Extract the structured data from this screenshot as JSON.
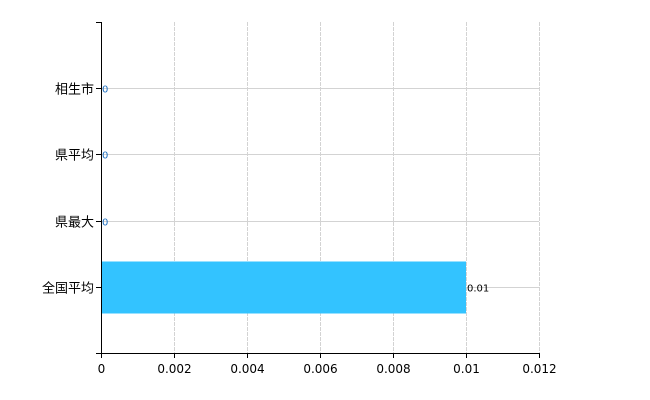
{
  "chart_data": {
    "type": "bar",
    "orientation": "horizontal",
    "title": "",
    "xlabel": "",
    "ylabel": "",
    "categories": [
      "相生市",
      "県平均",
      "県最大",
      "全国平均"
    ],
    "values": [
      0,
      0,
      0,
      0.01
    ],
    "data_labels": [
      "0",
      "0",
      "0",
      "0.01"
    ],
    "xlim": [
      0,
      0.012
    ],
    "xticks": [
      "0",
      "0.002",
      "0.004",
      "0.006",
      "0.008",
      "0.01",
      "0.012"
    ],
    "grid": true,
    "legend": "none",
    "colors": {
      "bar": "#33c3ff",
      "grid": "#d3d3d3",
      "axis": "#000000",
      "zero_label": "#1e6fc0"
    }
  }
}
